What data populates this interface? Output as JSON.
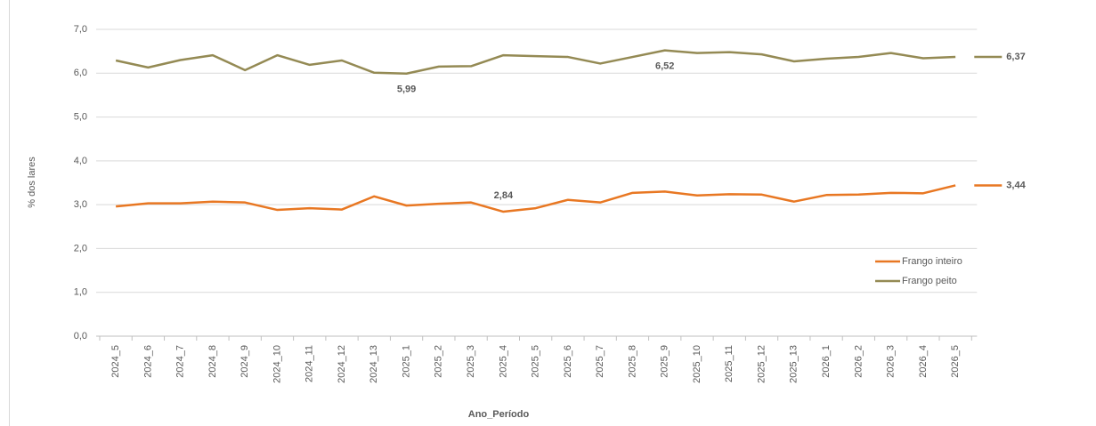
{
  "chart_data": {
    "type": "line",
    "x_label": "Ano_Período",
    "y_label": "% dos lares",
    "categories": [
      "2024_5",
      "2024_6",
      "2024_7",
      "2024_8",
      "2024_9",
      "2024_10",
      "2024_11",
      "2024_12",
      "2024_13",
      "2025_1",
      "2025_2",
      "2025_3",
      "2025_4",
      "2025_5",
      "2025_6",
      "2025_7",
      "2025_8",
      "2025_9",
      "2025_10",
      "2025_11",
      "2025_12",
      "2025_13",
      "2026_1",
      "2026_2",
      "2026_3",
      "2026_4",
      "2026_5"
    ],
    "series": [
      {
        "name": "Frango inteiro",
        "color": "#e87722",
        "values": [
          2.96,
          3.03,
          3.03,
          3.07,
          3.05,
          2.88,
          2.92,
          2.89,
          3.19,
          2.98,
          3.02,
          3.05,
          2.84,
          2.92,
          3.11,
          3.05,
          3.27,
          3.3,
          3.21,
          3.24,
          3.23,
          3.07,
          3.22,
          3.23,
          3.27,
          3.26,
          3.44
        ],
        "value_labels": [
          null,
          null,
          null,
          null,
          null,
          null,
          null,
          null,
          null,
          null,
          null,
          null,
          "2,84",
          null,
          null,
          null,
          null,
          null,
          null,
          null,
          null,
          null,
          null,
          null,
          null,
          null,
          "3,44"
        ]
      },
      {
        "name": "Frango peito",
        "color": "#948a54",
        "values": [
          6.29,
          6.13,
          6.3,
          6.41,
          6.07,
          6.41,
          6.19,
          6.29,
          6.01,
          5.99,
          6.15,
          6.16,
          6.41,
          6.39,
          6.37,
          6.22,
          6.37,
          6.52,
          6.46,
          6.48,
          6.43,
          6.27,
          6.33,
          6.37,
          6.46,
          6.34,
          6.37
        ],
        "value_labels": [
          null,
          null,
          null,
          null,
          null,
          null,
          null,
          null,
          null,
          "5,99",
          null,
          null,
          null,
          null,
          null,
          null,
          null,
          "6,52",
          null,
          null,
          null,
          null,
          null,
          null,
          null,
          null,
          "6,37"
        ]
      }
    ],
    "ylim": [
      0,
      7
    ],
    "yticks": [
      {
        "value": 0,
        "label": "0,0"
      },
      {
        "value": 1,
        "label": "1,0"
      },
      {
        "value": 2,
        "label": "2,0"
      },
      {
        "value": 3,
        "label": "3,0"
      },
      {
        "value": 4,
        "label": "4,0"
      },
      {
        "value": 5,
        "label": "5,0"
      },
      {
        "value": 6,
        "label": "6,0"
      },
      {
        "value": 7,
        "label": "7,0"
      }
    ],
    "grid": true,
    "legend": "lower right"
  }
}
